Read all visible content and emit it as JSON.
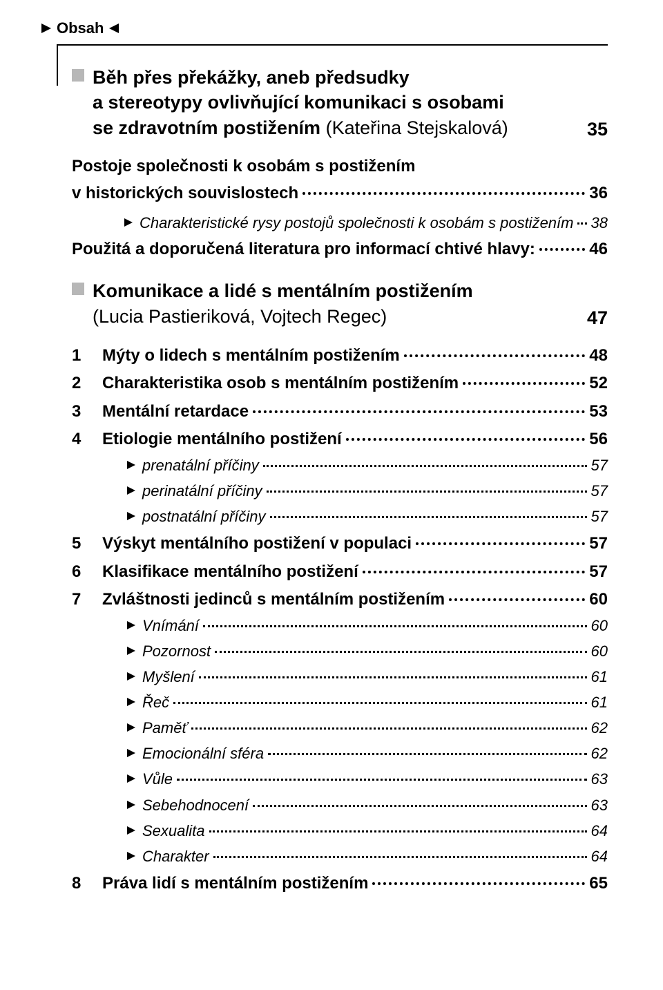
{
  "header": {
    "title": "Obsah"
  },
  "chapters": [
    {
      "title_lines": [
        "Běh přes překážky, aneb předsudky",
        "a stereotypy ovlivňující komunikaci s osobami",
        "se zdravotním postižením"
      ],
      "author": "(Kateřina Stejskalová)",
      "page": "35"
    },
    {
      "title_lines": [
        "Komunikace a lidé s mentálním postižením"
      ],
      "author": "(Lucia Pastieriková, Vojtech Regec)",
      "page": "47"
    }
  ],
  "section1": {
    "plain1_a": "Postoje společnosti k osobám s postižením",
    "plain1_b": "v historických souvislostech",
    "plain1_pg": "36",
    "sub1": "Charakteristické rysy postojů společnosti k osobám s postižením",
    "sub1_pg": "38",
    "plain2": "Použitá a doporučená literatura pro informací chtivé hlavy:",
    "plain2_pg": "46"
  },
  "section2": {
    "items": [
      {
        "num": "1",
        "label": "Mýty o lidech s mentálním postižením",
        "pg": "48"
      },
      {
        "num": "2",
        "label": "Charakteristika osob s mentálním postižením",
        "pg": "52"
      },
      {
        "num": "3",
        "label": "Mentální retardace",
        "pg": "53"
      },
      {
        "num": "4",
        "label": "Etiologie mentálního postižení",
        "pg": "56"
      }
    ],
    "subs4": [
      {
        "label": "prenatální příčiny",
        "pg": "57"
      },
      {
        "label": "perinatální příčiny",
        "pg": "57"
      },
      {
        "label": "postnatální příčiny",
        "pg": "57"
      }
    ],
    "items2": [
      {
        "num": "5",
        "label": "Výskyt mentálního postižení v populaci",
        "pg": "57"
      },
      {
        "num": "6",
        "label": "Klasifikace mentálního postižení",
        "pg": "57"
      },
      {
        "num": "7",
        "label": "Zvláštnosti jedinců s mentálním postižením",
        "pg": "60"
      }
    ],
    "subs7": [
      {
        "label": "Vnímání",
        "pg": "60"
      },
      {
        "label": "Pozornost",
        "pg": "60"
      },
      {
        "label": "Myšlení",
        "pg": "61"
      },
      {
        "label": "Řeč",
        "pg": "61"
      },
      {
        "label": "Paměť",
        "pg": "62"
      },
      {
        "label": "Emocionální sféra",
        "pg": "62"
      },
      {
        "label": "Vůle",
        "pg": "63"
      },
      {
        "label": "Sebehodnocení",
        "pg": "63"
      },
      {
        "label": "Sexualita",
        "pg": "64"
      },
      {
        "label": "Charakter",
        "pg": "64"
      }
    ],
    "item8": {
      "num": "8",
      "label": "Práva lidí s mentálním postižením",
      "pg": "65"
    }
  }
}
